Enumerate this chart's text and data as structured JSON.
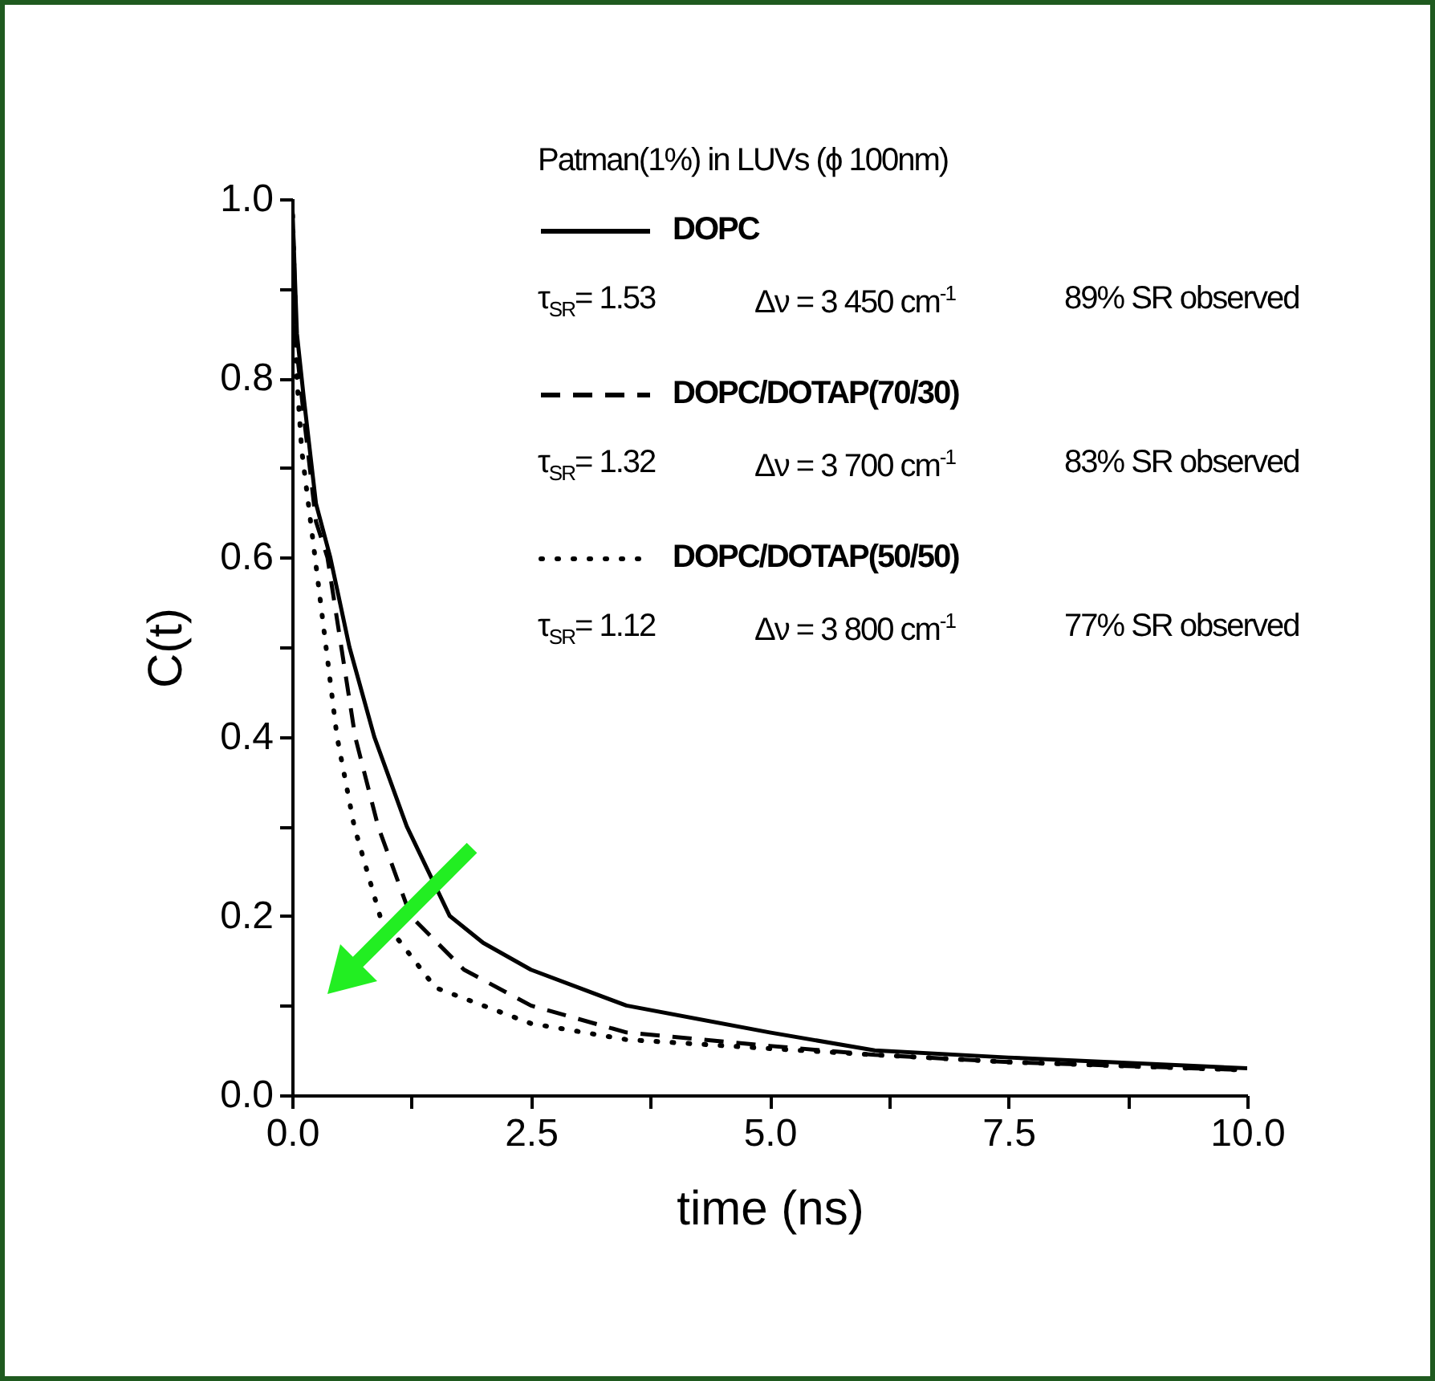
{
  "chart_data": {
    "type": "line",
    "xlabel": "time (ns)",
    "ylabel": "C(t)",
    "xlim": [
      0,
      10
    ],
    "ylim": [
      0,
      1
    ],
    "xticks": [
      {
        "value": 0,
        "label": "0.0"
      },
      {
        "value": 1.25,
        "label": null
      },
      {
        "value": 2.5,
        "label": "2.5"
      },
      {
        "value": 3.75,
        "label": null
      },
      {
        "value": 5,
        "label": "5.0"
      },
      {
        "value": 6.25,
        "label": null
      },
      {
        "value": 7.5,
        "label": "7.5"
      },
      {
        "value": 8.75,
        "label": null
      },
      {
        "value": 10,
        "label": "10.0"
      }
    ],
    "yticks": [
      {
        "value": 0,
        "label": "0.0"
      },
      {
        "value": 0.1,
        "label": null
      },
      {
        "value": 0.2,
        "label": "0.2"
      },
      {
        "value": 0.3,
        "label": null
      },
      {
        "value": 0.4,
        "label": "0.4"
      },
      {
        "value": 0.5,
        "label": null
      },
      {
        "value": 0.6,
        "label": "0.6"
      },
      {
        "value": 0.7,
        "label": null
      },
      {
        "value": 0.8,
        "label": "0.8"
      },
      {
        "value": 0.9,
        "label": null
      },
      {
        "value": 1,
        "label": "1.0"
      }
    ],
    "grid": false,
    "legend": "top right",
    "marker": "none",
    "series": [
      {
        "name": "DOPC",
        "color": "#000000",
        "line_style": "solid",
        "x": [
          0,
          0.05,
          0.12,
          0.25,
          0.4,
          0.6,
          0.86,
          1.2,
          1.65,
          2.0,
          2.5,
          3.5,
          5,
          6.1,
          7.5,
          10
        ],
        "values": [
          1,
          0.85,
          0.78,
          0.66,
          0.6,
          0.5,
          0.4,
          0.3,
          0.2,
          0.17,
          0.14,
          0.1,
          0.07,
          0.05,
          0.042,
          0.03
        ]
      },
      {
        "name": "DOPC/DOTAP(70/30)",
        "color": "#000000",
        "line_style": "dashed",
        "x": [
          0,
          0.05,
          0.12,
          0.25,
          0.37,
          0.66,
          0.9,
          1.24,
          1.8,
          2.5,
          3.5,
          5,
          6.1,
          7.5,
          10
        ],
        "values": [
          1,
          0.83,
          0.76,
          0.64,
          0.6,
          0.4,
          0.3,
          0.2,
          0.14,
          0.1,
          0.07,
          0.055,
          0.045,
          0.037,
          0.028
        ]
      },
      {
        "name": "DOPC/DOTAP(50/50)",
        "color": "#000000",
        "line_style": "dotted",
        "x": [
          0,
          0.05,
          0.1,
          0.24,
          0.47,
          0.65,
          0.92,
          1.5,
          2.5,
          3.5,
          5,
          6.1,
          7.5,
          10
        ],
        "values": [
          1,
          0.8,
          0.72,
          0.6,
          0.4,
          0.3,
          0.2,
          0.12,
          0.08,
          0.062,
          0.052,
          0.045,
          0.037,
          0.028
        ]
      }
    ],
    "annotations": [
      "Patman(1%) in LUVs (ϕ 100nm)",
      "τ$_{SR}$= 1.53",
      "Δν = 3 450 cm$^{-1}$",
      "89% SR observed",
      "τ$_{SR}$= 1.32",
      "Δν = 3 700 cm$^{-1}$",
      "83% SR observed",
      "τ$_{SR}$= 1.12",
      "Δν = 3 800 cm$^{-1}$",
      "77% SR observed"
    ]
  }
}
